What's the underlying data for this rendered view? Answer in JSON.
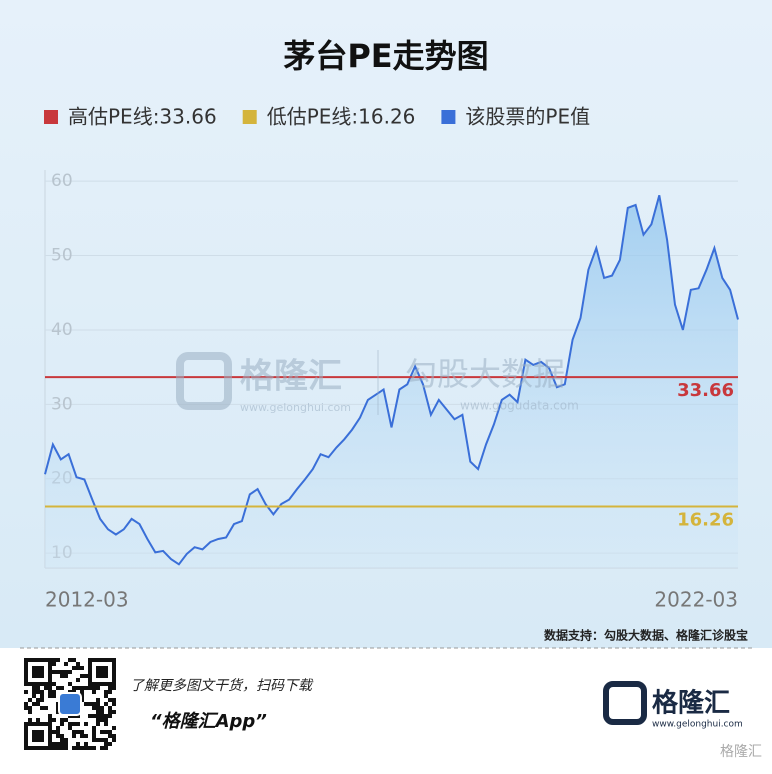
{
  "chart_data": {
    "type": "line",
    "title": "茅台PE走势图",
    "categories": [
      "2012-03",
      null,
      null,
      null,
      null,
      null,
      null,
      null,
      null,
      null,
      null,
      null,
      null,
      null,
      null,
      null,
      null,
      null,
      null,
      null,
      null,
      null,
      null,
      null,
      null,
      null,
      null,
      null,
      null,
      null,
      null,
      null,
      null,
      null,
      null,
      null,
      null,
      null,
      null,
      null,
      null,
      null,
      null,
      null,
      null,
      null,
      null,
      null,
      null,
      null,
      null,
      null,
      null,
      null,
      null,
      null,
      null,
      null,
      null,
      null,
      null,
      null,
      null,
      null,
      null,
      null,
      null,
      null,
      null,
      null,
      null,
      null,
      null,
      null,
      null,
      null,
      null,
      null,
      null,
      null,
      null,
      null,
      null,
      null,
      null,
      null,
      null,
      null,
      "2022-03"
    ],
    "series": [
      {
        "name": "该股票的PE值",
        "color": "#3a6fd8",
        "values": [
          20.6,
          24.6,
          22.6,
          23.3,
          20.2,
          19.9,
          17.2,
          14.6,
          13.2,
          12.5,
          13.2,
          14.6,
          13.9,
          11.9,
          10.1,
          10.3,
          9.2,
          8.5,
          9.9,
          10.8,
          10.5,
          11.5,
          11.9,
          12.1,
          13.9,
          14.3,
          17.9,
          18.6,
          16.6,
          15.2,
          16.6,
          17.2,
          18.6,
          19.9,
          21.3,
          23.3,
          22.9,
          24.2,
          25.3,
          26.6,
          28.2,
          30.6,
          31.3,
          32.0,
          26.9,
          32.0,
          32.7,
          35.1,
          32.7,
          28.6,
          30.6,
          29.3,
          28.0,
          28.6,
          22.3,
          21.3,
          24.6,
          27.3,
          30.6,
          31.3,
          30.3,
          36.0,
          35.3,
          35.7,
          34.9,
          32.3,
          32.7,
          38.7,
          41.6,
          48.1,
          51.0,
          47.0,
          47.3,
          49.4,
          56.4,
          56.8,
          52.8,
          54.2,
          58.1,
          52.1,
          43.4,
          40.0,
          45.4,
          45.6,
          48.1,
          51.0,
          47.0,
          45.4,
          41.4
        ]
      }
    ],
    "reference_lines": [
      {
        "name": "高估PE线:33.66",
        "value": 33.66,
        "color": "#c8383c"
      },
      {
        "name": "低估PE线:16.26",
        "value": 16.26,
        "color": "#d4b43c"
      }
    ],
    "ylim": [
      8,
      61.5
    ],
    "yticks": [
      10,
      20,
      30,
      40,
      50,
      60
    ],
    "grid": true
  },
  "source": "数据支持：勾股大数据、格隆汇诊股宝",
  "watermark": {
    "brand": "格隆汇",
    "brand_url": "www.gelonghui.com",
    "data_brand": "勾股大数据",
    "data_url": "www.gogudata.com"
  },
  "footer": {
    "promo": "了解更多图文干货，扫码下载",
    "app": "“格隆汇App”",
    "logo": "格隆汇",
    "logo_url": "www.gelonghui.com",
    "corner": "格隆汇"
  }
}
